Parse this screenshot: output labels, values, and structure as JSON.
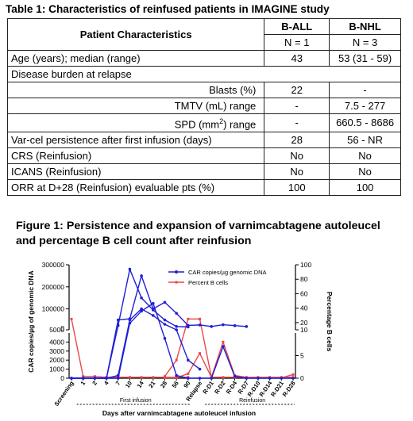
{
  "table": {
    "title": "Table 1: Characteristics of reinfused patients in IMAGINE study",
    "header": {
      "label": "Patient Characteristics",
      "col1": "B-ALL",
      "col2": "B-NHL",
      "col1_n": "N = 1",
      "col2_n": "N = 3"
    },
    "rows": [
      {
        "label": "Age (years); median (range)",
        "v1": "43",
        "v2": "53 (31 - 59)"
      },
      {
        "label": "Disease burden at relapse"
      },
      {
        "label": "Blasts (%)",
        "v1": "22",
        "v2": "-"
      },
      {
        "label": "TMTV (mL) range",
        "v1": "-",
        "v2": "7.5 - 277"
      },
      {
        "label": "SPD (mm",
        "sup": "2",
        "label_tail": ") range",
        "v1": "-",
        "v2": "660.5 - 8686"
      },
      {
        "label": "Var-cel persistence after first infusion (days)",
        "v1": "28",
        "v2": "56 - NR"
      },
      {
        "label": "CRS (Reinfusion)",
        "v1": "No",
        "v2": "No"
      },
      {
        "label": "ICANS (Reinfusion)",
        "v1": "No",
        "v2": "No"
      },
      {
        "label": "ORR at D+28 (Reinfusion) evaluable pts (%)",
        "v1": "100",
        "v2": "100"
      }
    ]
  },
  "figure": {
    "title": "Figure 1: Persistence and expansion of varnimcabtagene autoleucel and percentage B cell count after reinfusion"
  },
  "chart_data": {
    "type": "line",
    "categories": [
      "Screening",
      "1",
      "2",
      "4",
      "7",
      "10",
      "14",
      "21",
      "28",
      "56",
      "90",
      "Relapse",
      "R-D1",
      "R-D2",
      "R-D4",
      "R-D7",
      "R-D10",
      "R-D14",
      "R-D21",
      "R-D28"
    ],
    "ylabel": "CAR copies/µg of genomic DNA",
    "y2label": "Percentage B cells",
    "xlabel": "Days after varnimcabtagene autoleucel infusion",
    "phase_labels": {
      "first": "First infusion",
      "reinfusion": "Reinfusion"
    },
    "y_upper_ticks": [
      "0",
      "100000",
      "200000",
      "300000"
    ],
    "y_lower_ticks": [
      "0",
      "1000",
      "2000",
      "3000",
      "4000",
      "5000"
    ],
    "y2_upper_ticks": [
      "20",
      "40",
      "60",
      "80",
      "100"
    ],
    "y2_lower_ticks": [
      "0",
      "5",
      "10"
    ],
    "ylim_upper": [
      5000,
      300000
    ],
    "ylim_lower": [
      0,
      5000
    ],
    "y2lim_upper": [
      10,
      100
    ],
    "y2lim_lower": [
      0,
      10
    ],
    "legend": {
      "car": "CAR copies/µg genomic DNA",
      "bcell": "Percent B cells",
      "placement": "top-right"
    },
    "colors": {
      "car": "#1f1fd6",
      "bcell": "#e8474c"
    },
    "car_series": [
      [
        0,
        0,
        0,
        0,
        300,
        50000,
        100000,
        70000,
        30000,
        5000,
        2000,
        1000,
        null,
        null,
        null,
        null,
        null,
        null,
        null,
        null
      ],
      [
        0,
        0,
        0,
        0,
        25000,
        280000,
        150000,
        95000,
        50000,
        20000,
        18000,
        null,
        null,
        null,
        null,
        null,
        null,
        null,
        null,
        null
      ],
      [
        0,
        0,
        0,
        0,
        50000,
        55000,
        250000,
        100000,
        130000,
        80000,
        25000,
        27000,
        20000,
        28000,
        24000,
        20000,
        null,
        null,
        null,
        null
      ],
      [
        0,
        0,
        0,
        0,
        0,
        35000,
        90000,
        125000,
        4400,
        300,
        0,
        0,
        0,
        3500,
        200,
        0,
        0,
        0,
        0,
        0
      ]
    ],
    "bcell_series": [
      [
        25,
        0.4,
        0.4,
        0.2,
        0.2,
        0.2,
        0.2,
        0.2,
        0.2,
        0.2,
        0.2,
        null,
        null,
        null,
        null,
        null,
        null,
        null,
        null,
        null
      ],
      [
        null,
        null,
        null,
        null,
        null,
        null,
        null,
        null,
        0.4,
        4,
        25,
        25,
        0.2,
        0.2,
        0.2,
        0.1,
        0.1,
        0.1,
        0.1,
        0.8
      ],
      [
        null,
        null,
        null,
        null,
        null,
        null,
        null,
        null,
        0.1,
        0.1,
        1,
        5.5,
        0.2,
        8,
        0.6,
        0.2,
        0.2,
        0.2,
        0.2,
        0.2
      ]
    ]
  }
}
